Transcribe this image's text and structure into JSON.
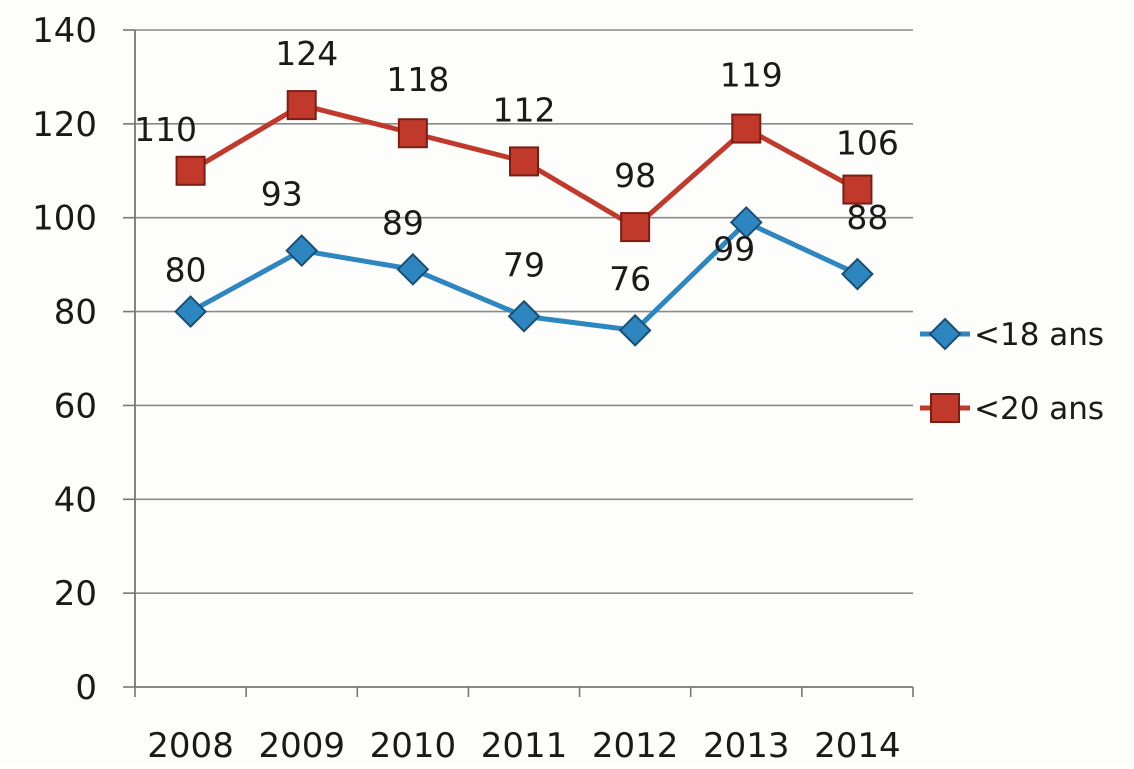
{
  "chart_data": {
    "type": "line",
    "title": "",
    "xlabel": "",
    "ylabel": "",
    "categories": [
      "2008",
      "2009",
      "2010",
      "2011",
      "2012",
      "2013",
      "2014"
    ],
    "series": [
      {
        "name": "<18 ans",
        "values": [
          80,
          93,
          89,
          79,
          76,
          99,
          88
        ],
        "labels": [
          "80",
          "93",
          "89",
          "79",
          "76",
          "99",
          "88"
        ],
        "color": "#2e86c1",
        "marker": "diamond"
      },
      {
        "name": "<20 ans",
        "values": [
          110,
          124,
          118,
          112,
          98,
          119,
          106
        ],
        "labels": [
          "110",
          "124",
          "118",
          "112",
          "98",
          "119",
          "106"
        ],
        "color": "#c0392b",
        "marker": "square"
      }
    ],
    "ylim": [
      0,
      140
    ],
    "yticks": [
      "0",
      "20",
      "40",
      "60",
      "80",
      "100",
      "120",
      "140"
    ],
    "grid": true,
    "legend_position": "right"
  }
}
